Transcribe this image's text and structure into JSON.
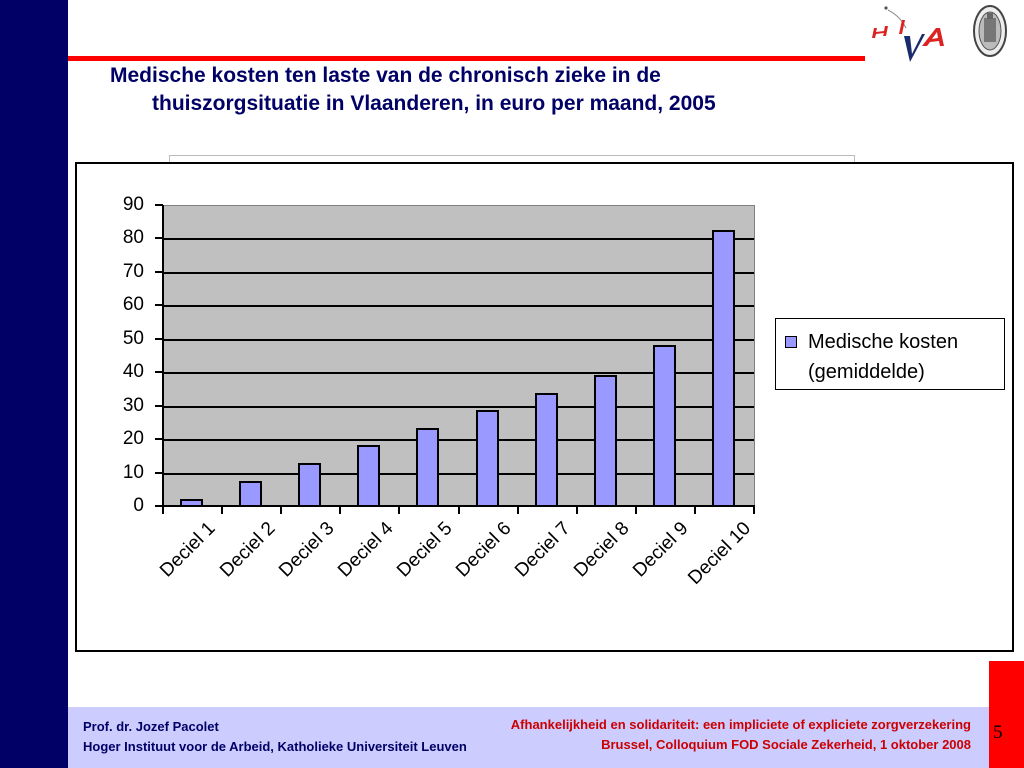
{
  "slide": {
    "title_line1": "Medische kosten ten laste van de chronisch zieke in de",
    "title_line2": "thuiszorgsituatie in Vlaanderen, in euro per maand, 2005",
    "page_number": "5",
    "colors": {
      "sidebar": "#000066",
      "accent_line": "#ff0000",
      "title": "#000066",
      "footer_bg": "#ccccff",
      "footer_left_text": "#000066",
      "footer_right_text": "#cc0000",
      "bar_fill": "#9999ff",
      "plot_bg": "#c0c0c0"
    }
  },
  "logos": {
    "left": "hiva-logo",
    "right": "ku-leuven-seal-icon"
  },
  "footer": {
    "author": "Prof. dr. Jozef Pacolet",
    "institution": "Hoger Instituut voor de Arbeid, Katholieke Universiteit Leuven",
    "event_title": "Afhankelijkheid en solidariteit: een impliciete of expliciete zorgverzekering",
    "event_place_date": "Brussel, Colloquium FOD Sociale Zekerheid, 1 oktober 2008"
  },
  "chart_data": {
    "type": "bar",
    "title": "Medische kosten ten laste van de chronisch zieke in de thuiszorgsituatie in Vlaanderen, in euro per maand, 2005",
    "xlabel": "",
    "ylabel": "",
    "categories": [
      "Deciel 1",
      "Deciel 2",
      "Deciel 3",
      "Deciel 4",
      "Deciel 5",
      "Deciel 6",
      "Deciel 7",
      "Deciel 8",
      "Deciel 9",
      "Deciel 10"
    ],
    "series": [
      {
        "name": "Medische kosten (gemiddelde)",
        "color": "#9999ff",
        "values": [
          2.2,
          7.5,
          12.9,
          18.1,
          23.4,
          28.7,
          33.9,
          39.2,
          48.0,
          82.5
        ]
      }
    ],
    "ylim": [
      0,
      90
    ],
    "yticks": [
      "0",
      "10",
      "20",
      "30",
      "40",
      "50",
      "60",
      "70",
      "80",
      "90"
    ],
    "grid": true,
    "legend": {
      "position": "right",
      "line1": "Medische kosten",
      "line2": "(gemiddelde)"
    }
  }
}
